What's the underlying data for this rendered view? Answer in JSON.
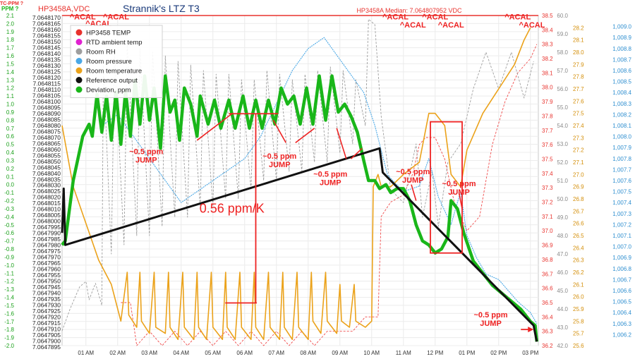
{
  "chart_data": {
    "type": "line",
    "title": "Strannik's LTZ T3",
    "header_left": "HP3458A,VDC",
    "header_median": "HP3458A Median: 7.064807952 VDC",
    "corner_labels": [
      "TC-PPM ?",
      "PPM ?"
    ],
    "x_ticks": [
      "01 AM",
      "02 AM",
      "03 AM",
      "04 AM",
      "05 AM",
      "06 AM",
      "07 AM",
      "08 AM",
      "09 AM",
      "10 AM",
      "11 AM",
      "12 PM",
      "01 PM",
      "02 PM",
      "03 PM"
    ],
    "x_range": [
      0.25,
      15.25
    ],
    "axes": {
      "ppm": {
        "range": [
          -2.0,
          2.1
        ],
        "ticks": [
          "2.1",
          "2.0",
          "1.9",
          "1.8",
          "1.7",
          "1.6",
          "1.5",
          "1.4",
          "1.3",
          "1.2",
          "1.1",
          "1.0",
          "0.9",
          "0.8",
          "0.7",
          "0.6",
          "0.5",
          "0.4",
          "0.3",
          "0.2",
          "0.1",
          "0.0",
          "-0.1",
          "-0.2",
          "-0.3",
          "-0.4",
          "-0.5",
          "-0.6",
          "-0.7",
          "-0.8",
          "-0.9",
          "-1.0",
          "-1.1",
          "-1.2",
          "-1.3",
          "-1.4",
          "-1.5",
          "-1.6",
          "-1.7",
          "-1.8",
          "-1.9",
          "-2.0"
        ]
      },
      "vdc": {
        "ticks": [
          "7.0648170",
          "7.0648165",
          "7.0648160",
          "7.0648155",
          "7.0648150",
          "7.0648145",
          "7.0648140",
          "7.0648135",
          "7.0648130",
          "7.0648125",
          "7.0648120",
          "7.0648115",
          "7.0648110",
          "7.0648105",
          "7.0648100",
          "7.0648095",
          "7.0648090",
          "7.0648085",
          "7.0648080",
          "7.0648075",
          "7.0648070",
          "7.0648065",
          "7.0648060",
          "7.0648055",
          "7.0648050",
          "7.0648045",
          "7.0648040",
          "7.0648035",
          "7.0648030",
          "7.0648025",
          "7.0648020",
          "7.0648015",
          "7.0648010",
          "7.0648005",
          "7.0648000",
          "7.0647995",
          "7.0647990",
          "7.0647985",
          "7.0647980",
          "7.0647975",
          "7.0647970",
          "7.0647965",
          "7.0647960",
          "7.0647955",
          "7.0647950",
          "7.0647945",
          "7.0647940",
          "7.0647935",
          "7.0647930",
          "7.0647925",
          "7.0647920",
          "7.0647915",
          "7.0647910",
          "7.0647905",
          "7.0647900",
          "7.0647895"
        ]
      },
      "temp": {
        "range": [
          36.2,
          38.5
        ],
        "ticks": [
          "38.5",
          "38.4",
          "38.3",
          "38.2",
          "38.1",
          "38.0",
          "37.9",
          "37.8",
          "37.7",
          "37.6",
          "37.5",
          "37.4",
          "37.3",
          "37.2",
          "37.1",
          "37.0",
          "36.9",
          "36.8",
          "36.7",
          "36.6",
          "36.5",
          "36.4",
          "36.3",
          "36.2"
        ]
      },
      "rh": {
        "range": [
          42.0,
          60.0
        ],
        "ticks": [
          "60.0",
          "59.0",
          "58.0",
          "57.0",
          "56.0",
          "55.0",
          "54.0",
          "53.0",
          "52.0",
          "51.0",
          "50.0",
          "49.0",
          "48.0",
          "47.0",
          "46.0",
          "45.0",
          "44.0",
          "43.0",
          "42.0"
        ]
      },
      "room_temp": {
        "range": [
          25.6,
          28.3
        ],
        "ticks": [
          "28.2",
          "28.1",
          "28.0",
          "27.9",
          "27.8",
          "27.7",
          "27.6",
          "27.5",
          "27.4",
          "27.3",
          "27.2",
          "27.1",
          "27.0",
          "26.9",
          "26.8",
          "26.7",
          "26.6",
          "26.5",
          "26.4",
          "26.3",
          "26.2",
          "26.1",
          "26.0",
          "25.9",
          "25.8",
          "25.7",
          "25.6"
        ]
      },
      "pressure": {
        "range": [
          1006.1,
          1009.1
        ],
        "ticks": [
          "1,009.0",
          "1,008.9",
          "1,008.8",
          "1,008.7",
          "1,008.6",
          "1,008.5",
          "1,008.4",
          "1,008.3",
          "1,008.2",
          "1,008.1",
          "1,008.0",
          "1,007.9",
          "1,007.8",
          "1,007.7",
          "1,007.6",
          "1,007.5",
          "1,007.4",
          "1,007.3",
          "1,007.2",
          "1,007.1",
          "1,007.0",
          "1,006.9",
          "1,006.8",
          "1,006.7",
          "1,006.6",
          "1,006.5",
          "1,006.4",
          "1,006.3",
          "1,006.2"
        ]
      }
    },
    "legend": [
      {
        "name": "HP3458 TEMP",
        "color": "#e8322d"
      },
      {
        "name": "RTD ambient temp",
        "color": "#e021d0"
      },
      {
        "name": "Room RH",
        "color": "#9e9e9e"
      },
      {
        "name": "Room pressure",
        "color": "#4aa8e6"
      },
      {
        "name": "Room temperature",
        "color": "#eba21a"
      },
      {
        "name": "Reference output",
        "color": "#111111"
      },
      {
        "name": "Deviation, ppm",
        "color": "#19b619"
      }
    ],
    "series": [
      {
        "name": "Deviation, ppm",
        "axis": "ppm",
        "color": "#19b619",
        "x": [
          0.25,
          0.35,
          0.6,
          0.9,
          1.1,
          1.2,
          1.35,
          1.5,
          1.65,
          1.8,
          1.95,
          2.1,
          2.25,
          2.4,
          2.55,
          2.7,
          2.85,
          3.0,
          3.15,
          3.35,
          3.5,
          3.65,
          3.8,
          3.95,
          4.1,
          4.3,
          4.5,
          4.6,
          4.85,
          5.05,
          5.25,
          5.5,
          5.7,
          5.95,
          6.15,
          6.35,
          6.55,
          6.75,
          6.95,
          7.15,
          7.35,
          7.55,
          7.75,
          7.95,
          8.15,
          8.35,
          8.55,
          8.75,
          8.95,
          9.15,
          9.35,
          9.55,
          9.75,
          9.9,
          10.1,
          10.25,
          10.45,
          10.6,
          10.8,
          11.0,
          11.2,
          11.4,
          11.6,
          11.8,
          12.0,
          12.2,
          12.4,
          12.5,
          12.7,
          12.9,
          13.2,
          13.5,
          13.8,
          14.1,
          14.4,
          14.7,
          15.0,
          15.15,
          15.2
        ],
        "y": [
          -0.75,
          -0.7,
          0.05,
          0.6,
          0.75,
          0.6,
          1.12,
          0.65,
          1.1,
          0.55,
          1.15,
          0.5,
          1.17,
          0.6,
          1.3,
          0.75,
          1.35,
          0.8,
          1.2,
          0.45,
          1.35,
          0.9,
          1.05,
          0.55,
          1.2,
          1.0,
          0.6,
          1.1,
          0.75,
          1.05,
          0.7,
          1.05,
          0.7,
          1.1,
          0.7,
          1.05,
          0.7,
          1.05,
          0.75,
          1.2,
          1.0,
          1.1,
          0.75,
          1.2,
          0.75,
          1.35,
          0.8,
          1.35,
          0.9,
          1.0,
          0.85,
          0.65,
          0.3,
          0.05,
          0.05,
          -0.05,
          0.0,
          -0.1,
          -0.05,
          -0.05,
          -0.2,
          -0.5,
          -0.7,
          -0.75,
          -0.85,
          -0.8,
          -0.65,
          -0.2,
          -0.3,
          -0.6,
          -0.95,
          -1.1,
          -1.25,
          -1.35,
          -1.45,
          -1.55,
          -1.7,
          -1.75,
          -1.95
        ]
      },
      {
        "name": "Reference output",
        "axis": "ppm",
        "color": "#111111",
        "x": [
          0.25,
          0.3,
          0.35,
          10.25,
          10.3,
          10.35,
          15.1,
          15.15,
          15.2
        ],
        "y": [
          -0.6,
          -0.05,
          -0.75,
          0.45,
          0.3,
          0.15,
          -1.75,
          -1.85,
          -1.95
        ]
      },
      {
        "name": "HP3458 TEMP",
        "axis": "temp",
        "color": "#e8322d",
        "x": [
          0.25,
          15.25
        ],
        "y": [
          38.5,
          38.5
        ]
      },
      {
        "name": "RTD ambient temp",
        "axis": "temp",
        "color": "#f04a4a",
        "x": [
          2.1,
          2.4,
          2.6,
          3.0,
          3.4,
          3.8,
          4.2,
          4.6,
          5.0,
          5.4,
          5.8,
          6.2,
          6.6,
          7.0,
          7.4,
          7.8,
          8.2,
          8.6,
          9.0,
          9.4,
          9.8,
          10.2,
          10.3,
          10.6,
          11.0,
          11.3,
          11.5,
          11.7,
          12.0,
          12.3,
          12.6,
          13.0,
          13.4,
          13.8,
          14.2,
          14.6,
          15.0,
          15.2
        ],
        "y": [
          36.5,
          36.5,
          36.2,
          36.3,
          36.2,
          36.3,
          36.2,
          36.3,
          36.2,
          36.3,
          36.2,
          36.3,
          36.2,
          36.3,
          36.2,
          36.3,
          36.2,
          36.3,
          36.3,
          36.3,
          36.4,
          36.4,
          37.1,
          37.2,
          37.25,
          37.4,
          37.6,
          37.65,
          37.65,
          37.5,
          37.2,
          37.0,
          37.1,
          37.6,
          37.9,
          38.1,
          38.2,
          38.3
        ]
      },
      {
        "name": "Room RH",
        "axis": "rh",
        "color": "#9e9e9e",
        "x": [
          0.25,
          0.5,
          0.8,
          1.0,
          1.1,
          1.3,
          1.5,
          1.55,
          1.8,
          1.9,
          2.2,
          2.3,
          2.6,
          2.7,
          3.0,
          3.1,
          3.4,
          3.5,
          3.8,
          3.9,
          4.2,
          4.3,
          4.6,
          4.7,
          5.0,
          5.1,
          5.4,
          5.5,
          5.8,
          5.9,
          6.2,
          6.3,
          6.6,
          6.7,
          7.0,
          7.1,
          7.4,
          7.5,
          7.8,
          7.9,
          8.2,
          8.3,
          8.6,
          8.7,
          9.0,
          9.1,
          9.4,
          9.5,
          9.8,
          9.9,
          10.1,
          10.3,
          10.6,
          11.0,
          11.4,
          11.6,
          11.9,
          12.1,
          12.4,
          12.8,
          13.2,
          13.6,
          14.0,
          14.4,
          14.8,
          15.1
        ],
        "y": [
          42.8,
          44.0,
          45.2,
          45.5,
          44.5,
          45.4,
          44.2,
          57.3,
          47.0,
          58.0,
          47.5,
          58.5,
          48.0,
          58.2,
          48.0,
          58.0,
          48.5,
          57.8,
          49.0,
          57.5,
          49.0,
          57.3,
          49.5,
          57.0,
          49.5,
          56.8,
          50.0,
          56.8,
          50.0,
          56.5,
          50.5,
          56.5,
          51.0,
          57.0,
          51.0,
          56.8,
          51.5,
          56.5,
          51.5,
          56.8,
          52.0,
          57.0,
          52.0,
          57.2,
          52.5,
          57.0,
          53.0,
          56.5,
          54.0,
          59.8,
          59.5,
          54.5,
          50.5,
          49.8,
          53.0,
          49.0,
          51.5,
          48.5,
          52.0,
          53.0,
          56.0,
          58.0,
          56.0,
          58.0,
          55.5,
          57.5
        ]
      },
      {
        "name": "Room pressure",
        "axis": "pressure",
        "color": "#4aa8e6",
        "x": [
          1.5,
          2.0,
          2.5,
          3.0,
          3.5,
          4.0,
          4.5,
          5.0,
          5.5,
          6.0,
          6.5,
          7.0,
          7.5,
          8.0,
          8.5,
          9.0,
          9.5,
          9.75,
          10.1,
          10.5,
          11.0,
          11.5,
          11.8,
          12.1,
          12.5,
          12.8,
          13.0,
          13.3,
          13.6,
          14.0,
          14.3,
          14.6,
          15.0,
          15.2
        ],
        "y": [
          1008.1,
          1008.2,
          1008.0,
          1007.8,
          1007.6,
          1007.4,
          1007.5,
          1007.6,
          1007.7,
          1007.8,
          1008.0,
          1008.3,
          1008.6,
          1008.8,
          1008.9,
          1008.7,
          1008.5,
          1008.4,
          1008.1,
          1007.65,
          1007.5,
          1007.55,
          1007.8,
          1007.45,
          1007.2,
          1007.5,
          1007.1,
          1006.9,
          1006.75,
          1006.7,
          1006.6,
          1006.5,
          1006.4,
          1006.3
        ]
      },
      {
        "name": "Room temperature",
        "axis": "room_temp",
        "color": "#eba21a",
        "x": [
          0.25,
          0.6,
          1.0,
          1.4,
          1.8,
          2.0,
          2.1,
          2.3,
          2.35,
          2.6,
          2.7,
          2.75,
          3.0,
          3.15,
          3.2,
          3.5,
          3.6,
          3.65,
          3.9,
          4.05,
          4.1,
          4.4,
          4.5,
          4.55,
          4.8,
          4.95,
          5.0,
          5.3,
          5.4,
          5.45,
          5.7,
          5.85,
          5.9,
          6.2,
          6.3,
          6.35,
          6.6,
          6.75,
          6.8,
          7.1,
          7.2,
          7.25,
          7.5,
          7.65,
          7.7,
          8.0,
          8.1,
          8.15,
          8.4,
          8.55,
          8.6,
          8.9,
          9.0,
          9.05,
          9.3,
          9.45,
          9.5,
          9.8,
          10.0,
          10.05,
          10.2,
          10.3,
          10.6,
          11.0,
          11.5,
          11.8,
          12.0,
          12.3,
          12.5,
          12.8,
          13.0,
          13.5,
          14.0,
          14.5,
          14.8,
          15.0
        ],
        "y": [
          27.4,
          26.9,
          26.6,
          26.3,
          26.1,
          25.9,
          25.8,
          26.2,
          25.85,
          25.75,
          26.2,
          25.8,
          25.7,
          26.2,
          25.75,
          25.7,
          26.2,
          25.75,
          25.65,
          26.2,
          25.75,
          25.65,
          26.2,
          25.75,
          25.65,
          26.2,
          25.75,
          25.65,
          26.2,
          25.75,
          25.65,
          26.2,
          25.75,
          25.65,
          26.2,
          25.75,
          25.65,
          26.2,
          25.75,
          25.65,
          26.2,
          25.75,
          25.65,
          26.2,
          25.75,
          25.65,
          26.2,
          25.8,
          25.7,
          26.2,
          25.8,
          25.7,
          26.1,
          25.8,
          25.75,
          26.1,
          25.8,
          25.75,
          25.8,
          26.9,
          27.0,
          26.9,
          26.9,
          27.0,
          27.1,
          27.5,
          27.5,
          27.4,
          27.0,
          26.9,
          27.2,
          27.5,
          27.7,
          27.9,
          28.1,
          28.2
        ]
      }
    ],
    "annotations": [
      {
        "text": "~0.5 ppm",
        "text2": "JUMP",
        "x": 2.9,
        "y": 0.38
      },
      {
        "text": "~0.5 ppm",
        "text2": "JUMP",
        "x": 7.1,
        "y": 0.32
      },
      {
        "text": "~0.5 ppm",
        "text2": "JUMP",
        "x": 8.7,
        "y": 0.1
      },
      {
        "text": "~0.5 ppm",
        "text2": "JUMP",
        "x": 11.3,
        "y": 0.13
      },
      {
        "text": "~0.5 ppm",
        "text2": "JUMP",
        "x": 12.75,
        "y": -0.02
      },
      {
        "text": "~0.5 ppm",
        "text2": "JUMP",
        "x": 13.75,
        "y": -1.65
      }
    ],
    "acal_labels": [
      {
        "text": "^ACAL",
        "x": 0.9,
        "y": 2.05
      },
      {
        "text": "^ACAL",
        "x": 1.4,
        "y": 1.97
      },
      {
        "text": "^ACAL",
        "x": 1.95,
        "y": 2.05
      },
      {
        "text": "^ACAL",
        "x": 10.75,
        "y": 2.05
      },
      {
        "text": "^ACAL",
        "x": 11.3,
        "y": 1.95
      },
      {
        "text": "^ACAL",
        "x": 12.0,
        "y": 2.05
      },
      {
        "text": "^ACAL",
        "x": 12.5,
        "y": 1.95
      },
      {
        "text": "^ACAL",
        "x": 14.6,
        "y": 2.05
      },
      {
        "text": "^ACAL",
        "x": 15.05,
        "y": 1.95
      }
    ],
    "tc_label": {
      "text": "0.56 ppm/K",
      "x": 5.6,
      "y": -0.35
    },
    "tc_bracket": {
      "x_left": 5.5,
      "x_right": 7.05,
      "x_center": 6.35,
      "y_top": 0.88,
      "y_bottom": -1.47
    },
    "jump_box": {
      "x_left": 11.85,
      "x_right": 12.85,
      "y_top": 0.78,
      "y_bottom": -0.85
    },
    "jump_lines": [
      {
        "x1": 5.6,
        "y1": 0.88,
        "x2": 4.5,
        "y2": 0.55
      },
      {
        "x1": 6.9,
        "y1": 0.8,
        "x2": 7.3,
        "y2": 0.52
      },
      {
        "x1": 8.2,
        "y1": 0.7,
        "x2": 7.6,
        "y2": 0.52
      },
      {
        "x1": 8.9,
        "y1": 0.7,
        "x2": 9.2,
        "y2": 0.32
      },
      {
        "x1": 9.7,
        "y1": 0.45,
        "x2": 9.35,
        "y2": 0.32
      },
      {
        "x1": 11.4,
        "y1": -0.2,
        "x2": 11.25,
        "y2": 0.0
      },
      {
        "x1": 12.85,
        "y1": -0.3,
        "x2": 12.75,
        "y2": -0.1
      }
    ],
    "arrow": {
      "x1": 14.7,
      "y1": -1.8,
      "x2": 15.1,
      "y2": -1.8
    }
  }
}
